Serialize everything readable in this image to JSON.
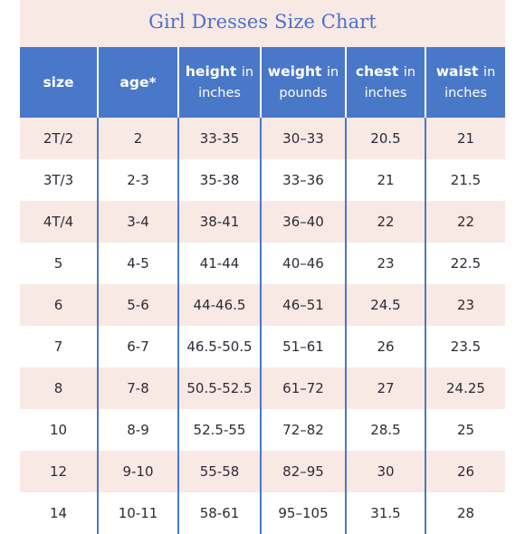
{
  "title": "Girl Dresses Size Chart",
  "columns": [
    {
      "main": "size",
      "unit": ""
    },
    {
      "main": "age*",
      "unit": ""
    },
    {
      "main": "height",
      "unit": "in inches"
    },
    {
      "main": "weight",
      "unit": "in pounds"
    },
    {
      "main": "chest",
      "unit": "in inches"
    },
    {
      "main": "waist",
      "unit": "in inches"
    }
  ],
  "rows": [
    [
      "2T/2",
      "2",
      "33-35",
      "30–33",
      "20.5",
      "21"
    ],
    [
      "3T/3",
      "2-3",
      "35-38",
      "33–36",
      "21",
      "21.5"
    ],
    [
      "4T/4",
      "3-4",
      "38-41",
      "36–40",
      "22",
      "22"
    ],
    [
      "5",
      "4-5",
      "41-44",
      "40–46",
      "23",
      "22.5"
    ],
    [
      "6",
      "5-6",
      "44-46.5",
      "46–51",
      "24.5",
      "23"
    ],
    [
      "7",
      "6-7",
      "46.5-50.5",
      "51–61",
      "26",
      "23.5"
    ],
    [
      "8",
      "7-8",
      "50.5-52.5",
      "61–72",
      "27",
      "24.25"
    ],
    [
      "10",
      "8-9",
      "52.5-55",
      "72–82",
      "28.5",
      "25"
    ],
    [
      "12",
      "9-10",
      "55-58",
      "82–95",
      "30",
      "26"
    ],
    [
      "14",
      "10-11",
      "58-61",
      "95–105",
      "31.5",
      "28"
    ]
  ],
  "colors": {
    "header_bg": "#4a78c9",
    "title_text": "#4b71c9",
    "band_bg": "#f8e9e4",
    "cell_text": "#2e2a36"
  }
}
